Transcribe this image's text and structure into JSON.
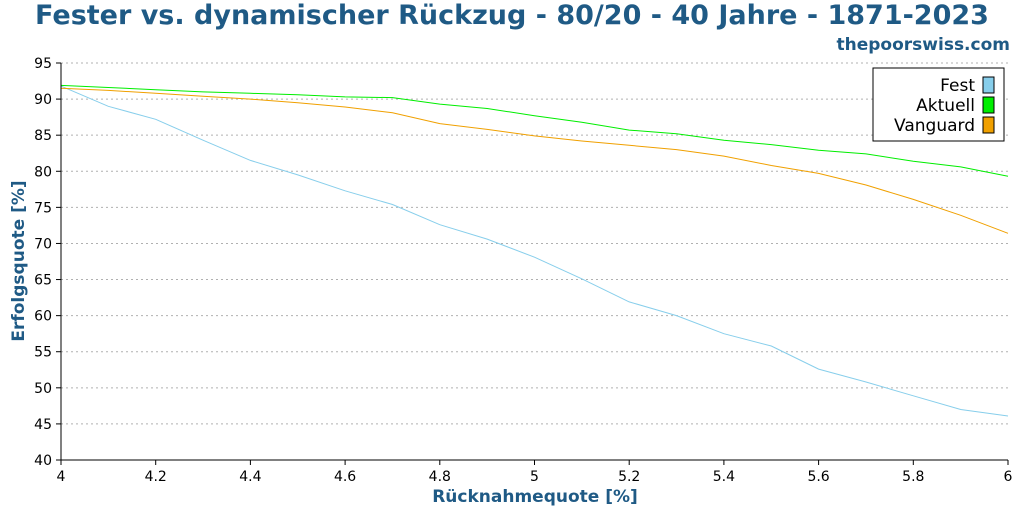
{
  "chart_data": {
    "type": "line",
    "title": "Fester vs. dynamischer Rückzug - 80/20 - 40 Jahre - 1871-2023",
    "subtitle": "thepoorswiss.com",
    "xlabel": "Rücknahmequote [%]",
    "ylabel": "Erfolgsquote [%]",
    "xlim": [
      4,
      6
    ],
    "ylim": [
      40,
      95
    ],
    "x_ticks": [
      4,
      4.2,
      4.4,
      4.6,
      4.8,
      5,
      5.2,
      5.4,
      5.6,
      5.8,
      6
    ],
    "x_tick_labels": [
      "4",
      "4.2",
      "4.4",
      "4.6",
      "4.8",
      "5",
      "5.2",
      "5.4",
      "5.6",
      "5.8",
      "6"
    ],
    "y_ticks": [
      40,
      45,
      50,
      55,
      60,
      65,
      70,
      75,
      80,
      85,
      90,
      95
    ],
    "grid": "horizontal dotted",
    "legend_position": "top-right",
    "x": [
      4.0,
      4.1,
      4.2,
      4.3,
      4.4,
      4.5,
      4.6,
      4.7,
      4.8,
      4.9,
      5.0,
      5.1,
      5.2,
      5.3,
      5.4,
      5.5,
      5.6,
      5.7,
      5.8,
      5.9,
      6.0
    ],
    "series": [
      {
        "name": "Fest",
        "color": "#87ceeb",
        "values": [
          91.8,
          89.0,
          87.2,
          84.3,
          81.5,
          79.5,
          77.3,
          75.4,
          72.6,
          70.6,
          68.1,
          65.1,
          61.9,
          60.0,
          57.5,
          55.8,
          52.6,
          50.8,
          48.9,
          47.0,
          46.1
        ]
      },
      {
        "name": "Aktuell",
        "color": "#00ee00",
        "values": [
          91.9,
          91.6,
          91.3,
          91.0,
          90.8,
          90.6,
          90.3,
          90.2,
          89.3,
          88.7,
          87.7,
          86.8,
          85.7,
          85.2,
          84.3,
          83.7,
          82.9,
          82.4,
          81.4,
          80.6,
          79.3
        ]
      },
      {
        "name": "Vanguard",
        "color": "#f0a000",
        "values": [
          91.5,
          91.2,
          90.8,
          90.4,
          90.0,
          89.5,
          88.9,
          88.1,
          86.6,
          85.8,
          84.9,
          84.2,
          83.6,
          83.0,
          82.1,
          80.8,
          79.7,
          78.1,
          76.1,
          73.9,
          71.4
        ]
      }
    ]
  }
}
